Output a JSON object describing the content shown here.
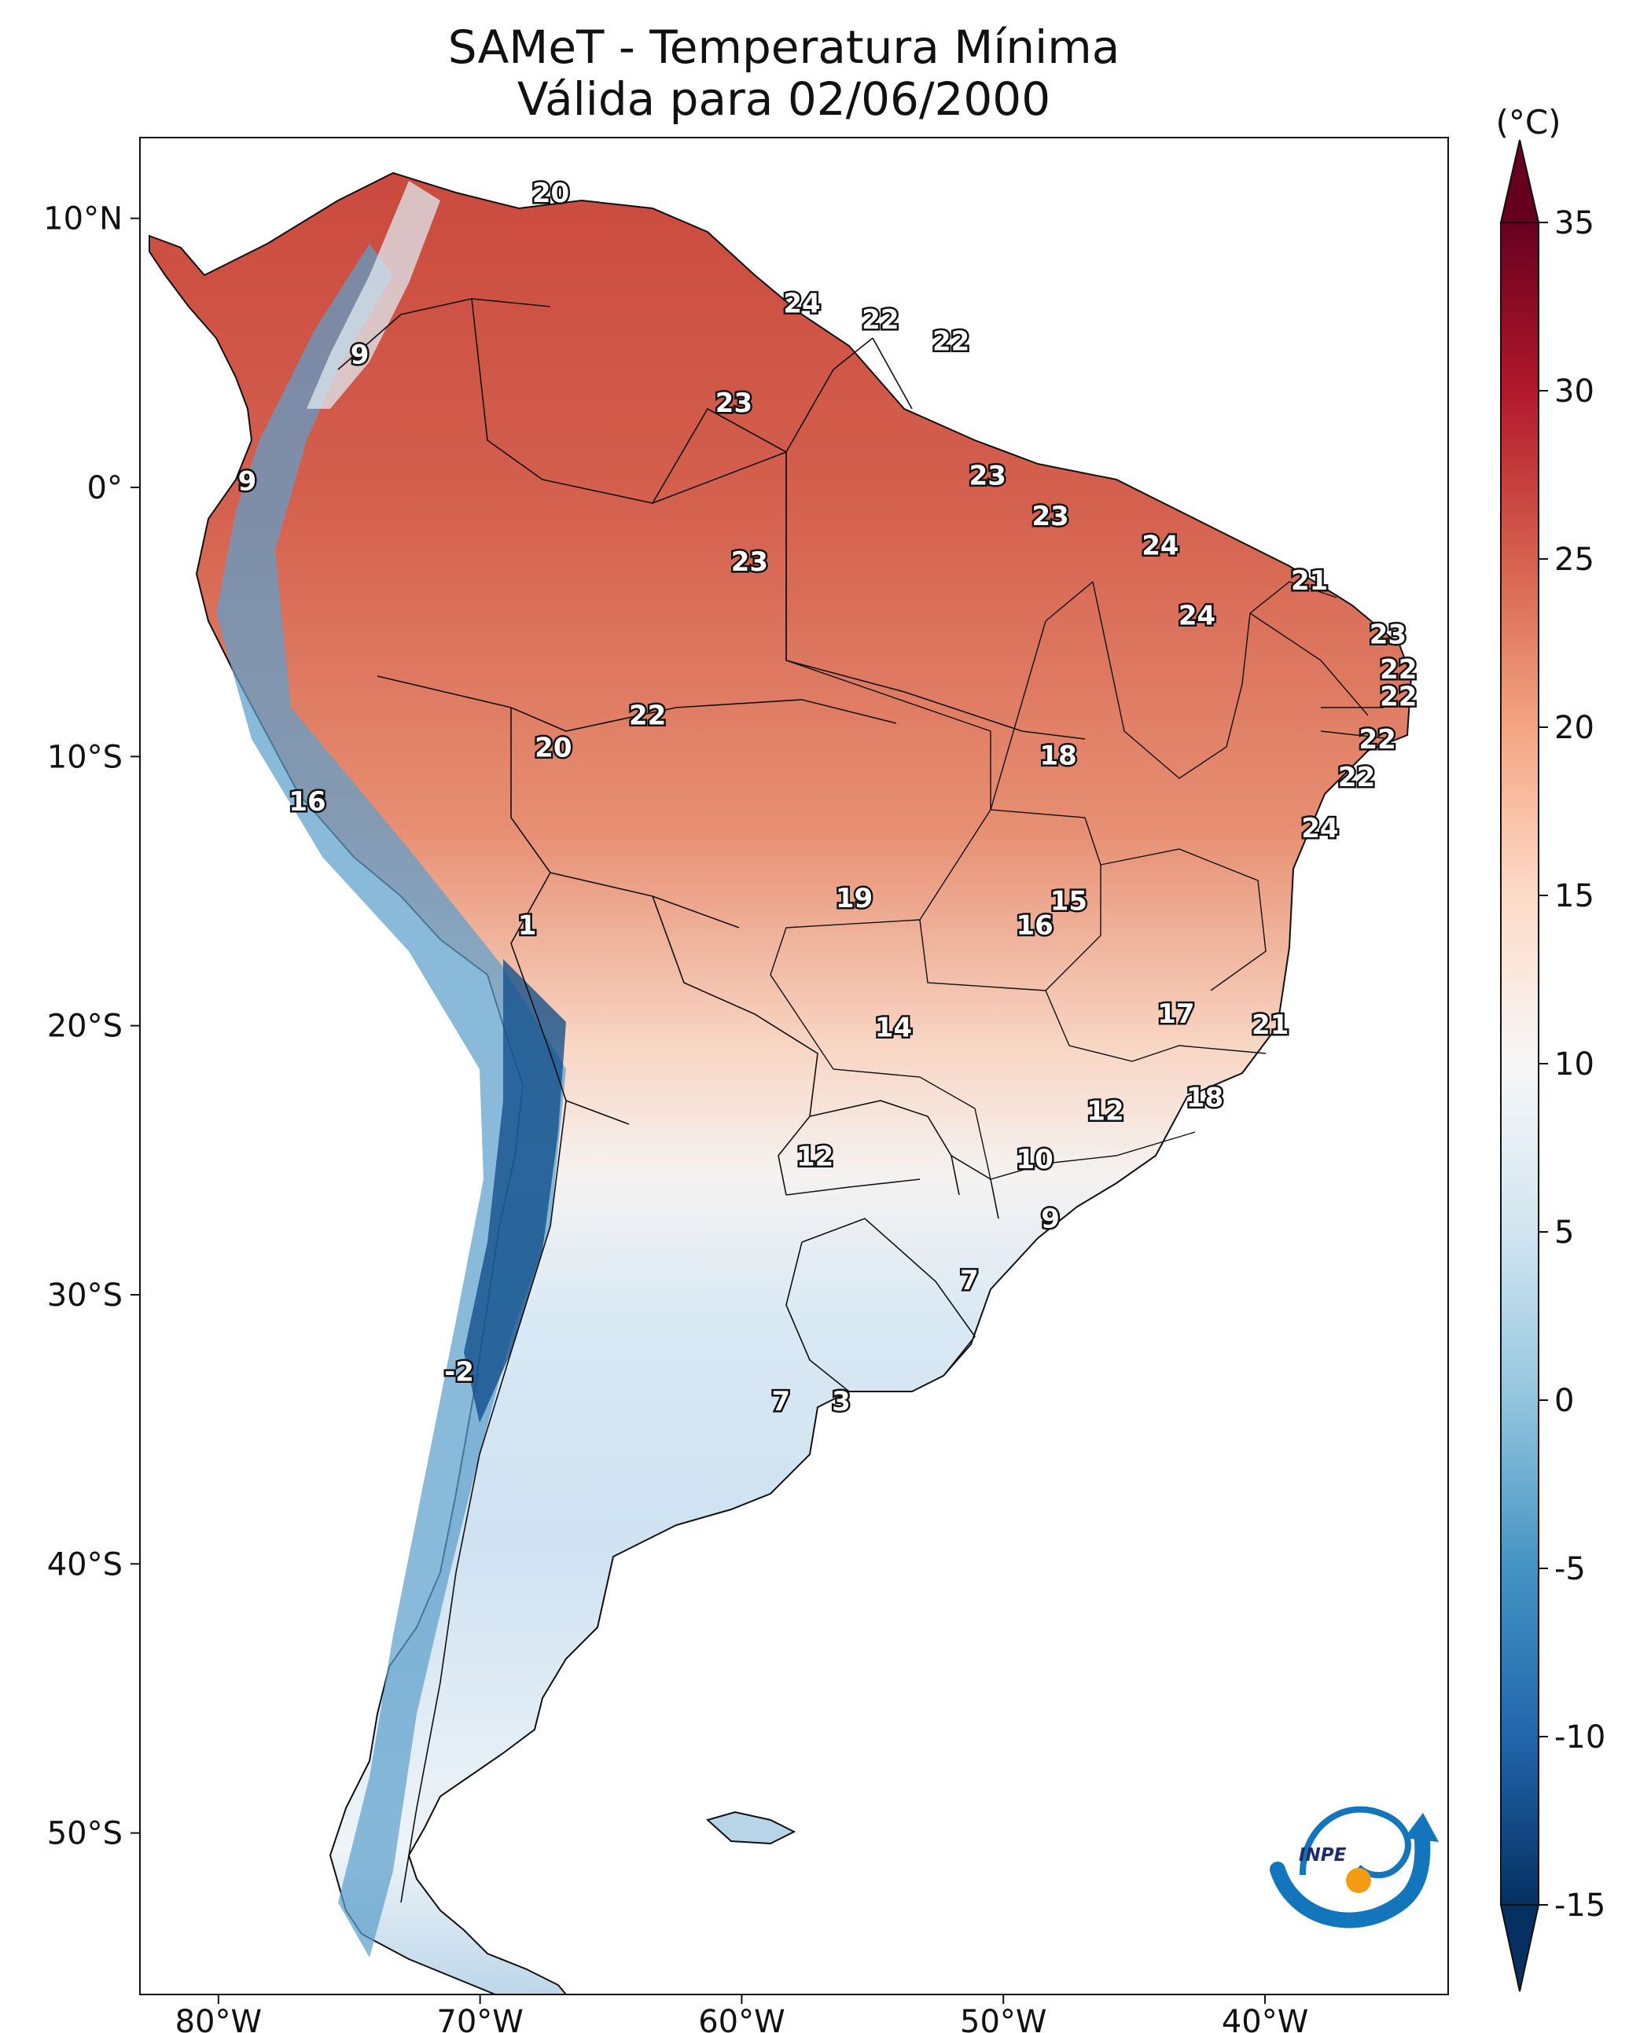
{
  "title": {
    "line1": "SAMeT - Temperatura Mínima",
    "line2": "Válida para 02/06/2000"
  },
  "map_data": {
    "type": "map",
    "region": "South America",
    "variable": "Temperatura Mínima",
    "date": "02/06/2000",
    "longitude_ticks": [
      {
        "value": -80,
        "label": "80°W"
      },
      {
        "value": -70,
        "label": "70°W"
      },
      {
        "value": -60,
        "label": "60°W"
      },
      {
        "value": -50,
        "label": "50°W"
      },
      {
        "value": -40,
        "label": "40°W"
      }
    ],
    "latitude_ticks": [
      {
        "value": 10,
        "label": "10°N"
      },
      {
        "value": 0,
        "label": "0°"
      },
      {
        "value": -10,
        "label": "10°S"
      },
      {
        "value": -20,
        "label": "20°S"
      },
      {
        "value": -30,
        "label": "30°S"
      },
      {
        "value": -40,
        "label": "40°S"
      },
      {
        "value": -50,
        "label": "50°S"
      }
    ],
    "extent": {
      "lon_min": -83,
      "lon_max": -33,
      "lat_min": -56,
      "lat_max": 13
    },
    "colorbar": {
      "unit_label": "(°C)",
      "min": -15,
      "max": 35,
      "ticks": [
        {
          "value": 35,
          "label": "35"
        },
        {
          "value": 30,
          "label": "30"
        },
        {
          "value": 25,
          "label": "25"
        },
        {
          "value": 20,
          "label": "20"
        },
        {
          "value": 15,
          "label": "15"
        },
        {
          "value": 10,
          "label": "10"
        },
        {
          "value": 5,
          "label": "5"
        },
        {
          "value": 0,
          "label": "0"
        },
        {
          "value": -5,
          "label": "-5"
        },
        {
          "value": -10,
          "label": "-10"
        },
        {
          "value": -15,
          "label": "-15"
        }
      ],
      "colors": [
        "#053061",
        "#2166ac",
        "#4393c3",
        "#92c5de",
        "#d1e5f0",
        "#f7f7f7",
        "#fddbc7",
        "#f4a582",
        "#d6604d",
        "#b2182b",
        "#67001f"
      ]
    },
    "station_labels": [
      {
        "value": "20",
        "lon": -67.3,
        "lat": 10.6
      },
      {
        "value": "24",
        "lon": -57.7,
        "lat": 6.5
      },
      {
        "value": "22",
        "lon": -54.7,
        "lat": 5.9
      },
      {
        "value": "22",
        "lon": -52.0,
        "lat": 5.1
      },
      {
        "value": "9",
        "lon": -74.6,
        "lat": 4.6
      },
      {
        "value": "23",
        "lon": -60.3,
        "lat": 2.8
      },
      {
        "value": "9",
        "lon": -78.9,
        "lat": -0.1
      },
      {
        "value": "23",
        "lon": -50.6,
        "lat": 0.1
      },
      {
        "value": "23",
        "lon": -48.2,
        "lat": -1.4
      },
      {
        "value": "24",
        "lon": -44.0,
        "lat": -2.5
      },
      {
        "value": "23",
        "lon": -59.7,
        "lat": -3.1
      },
      {
        "value": "21",
        "lon": -38.3,
        "lat": -3.8
      },
      {
        "value": "24",
        "lon": -42.6,
        "lat": -5.1
      },
      {
        "value": "23",
        "lon": -35.3,
        "lat": -5.8
      },
      {
        "value": "22",
        "lon": -34.9,
        "lat": -7.1
      },
      {
        "value": "22",
        "lon": -34.9,
        "lat": -8.1
      },
      {
        "value": "22",
        "lon": -63.6,
        "lat": -8.8
      },
      {
        "value": "22",
        "lon": -35.7,
        "lat": -9.7
      },
      {
        "value": "20",
        "lon": -67.2,
        "lat": -10.0
      },
      {
        "value": "18",
        "lon": -47.9,
        "lat": -10.3
      },
      {
        "value": "22",
        "lon": -36.5,
        "lat": -11.1
      },
      {
        "value": "16",
        "lon": -76.6,
        "lat": -12.0
      },
      {
        "value": "24",
        "lon": -37.9,
        "lat": -13.0
      },
      {
        "value": "19",
        "lon": -55.7,
        "lat": -15.6
      },
      {
        "value": "15",
        "lon": -47.5,
        "lat": -15.7
      },
      {
        "value": "1",
        "lon": -68.2,
        "lat": -16.6
      },
      {
        "value": "16",
        "lon": -48.8,
        "lat": -16.6
      },
      {
        "value": "17",
        "lon": -43.4,
        "lat": -19.9
      },
      {
        "value": "14",
        "lon": -54.2,
        "lat": -20.4
      },
      {
        "value": "21",
        "lon": -39.8,
        "lat": -20.3
      },
      {
        "value": "18",
        "lon": -42.3,
        "lat": -23.0
      },
      {
        "value": "12",
        "lon": -46.1,
        "lat": -23.5
      },
      {
        "value": "12",
        "lon": -57.2,
        "lat": -25.2
      },
      {
        "value": "10",
        "lon": -48.8,
        "lat": -25.3
      },
      {
        "value": "9",
        "lon": -48.2,
        "lat": -27.5
      },
      {
        "value": "7",
        "lon": -51.3,
        "lat": -29.8
      },
      {
        "value": "-2",
        "lon": -70.8,
        "lat": -33.2
      },
      {
        "value": "7",
        "lon": -58.5,
        "lat": -34.3
      },
      {
        "value": "3",
        "lon": -56.2,
        "lat": -34.3
      }
    ]
  },
  "logo": {
    "text": "INPE",
    "colors": {
      "blue": "#1376bd",
      "orange": "#f39c12",
      "navy": "#1b2f6b"
    }
  }
}
